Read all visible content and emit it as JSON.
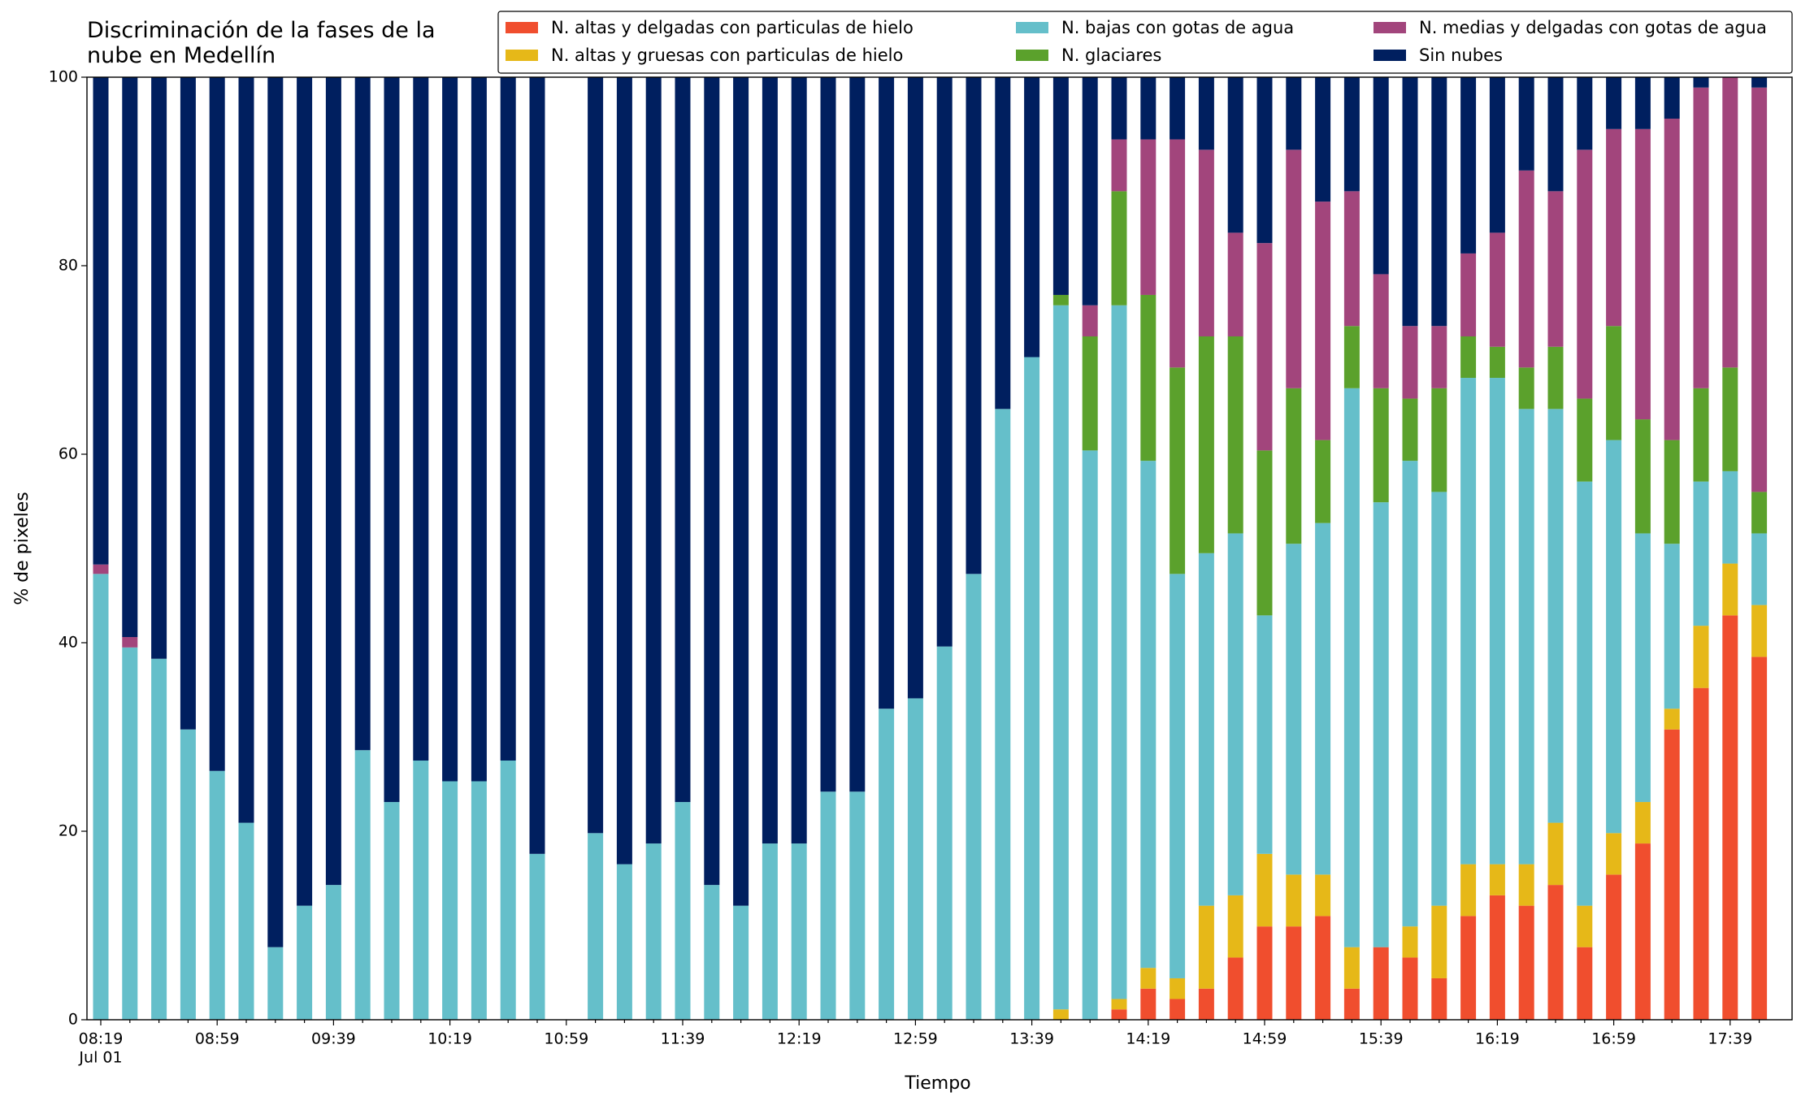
{
  "chart_data": {
    "type": "stacked_bar",
    "title": "Discriminación de la fases de la\nnube en Medellín",
    "xlabel": "Tiempo",
    "ylabel": "% de pixeles",
    "x_sublabel": "Jul 01",
    "categories": [
      "08:19",
      null,
      null,
      null,
      "08:59",
      null,
      null,
      null,
      "09:39",
      null,
      null,
      null,
      "10:19",
      null,
      null,
      null,
      "10:59",
      null,
      null,
      null,
      "11:39",
      null,
      null,
      null,
      "12:19",
      null,
      null,
      null,
      "12:59",
      null,
      null,
      null,
      "13:39",
      null,
      null,
      null,
      "14:19",
      null,
      null,
      null,
      "14:59",
      null,
      null,
      null,
      "15:39",
      null,
      null,
      null,
      "16:19",
      null,
      null,
      null,
      "16:59",
      null,
      null,
      null,
      "17:39",
      null
    ],
    "ylim": [
      0,
      100
    ],
    "yticks": [
      0,
      20,
      40,
      60,
      80,
      100
    ],
    "legend": "top-right",
    "series": [
      {
        "name": "N. altas y delgadas con particulas de hielo",
        "color": "#f04e2e",
        "values": [
          0,
          0,
          0,
          0,
          0,
          0,
          0,
          0,
          0,
          0,
          0,
          0,
          0,
          0,
          0,
          0,
          null,
          0,
          0,
          0,
          0,
          0,
          0,
          0,
          0,
          0,
          0,
          0,
          0,
          0,
          0,
          0,
          0,
          0,
          0,
          1.1,
          3.3,
          2.2,
          3.3,
          6.6,
          9.9,
          9.9,
          11.0,
          3.3,
          7.7,
          6.6,
          4.4,
          11.0,
          13.2,
          12.1,
          14.3,
          7.7,
          15.4,
          18.7,
          30.8,
          35.2,
          42.9,
          38.5
        ]
      },
      {
        "name": "N. altas y gruesas con particulas de hielo",
        "color": "#e6b818",
        "values": [
          0,
          0,
          0,
          0,
          0,
          0,
          0,
          0,
          0,
          0,
          0,
          0,
          0,
          0,
          0,
          0,
          null,
          0,
          0,
          0,
          0,
          0,
          0,
          0,
          0,
          0,
          0,
          0,
          0,
          0,
          0,
          0,
          0,
          1.1,
          0,
          1.1,
          2.2,
          2.2,
          8.8,
          6.6,
          7.7,
          5.5,
          4.4,
          4.4,
          0,
          3.3,
          7.7,
          5.5,
          3.3,
          4.4,
          6.6,
          4.4,
          4.4,
          4.4,
          2.2,
          6.6,
          5.5,
          5.5
        ]
      },
      {
        "name": "N. bajas con gotas de agua",
        "color": "#65bfca",
        "values": [
          47.3,
          39.5,
          38.3,
          30.8,
          26.4,
          20.9,
          7.7,
          12.1,
          14.3,
          28.6,
          23.1,
          27.5,
          25.3,
          25.3,
          27.5,
          17.6,
          null,
          19.8,
          16.5,
          18.7,
          23.1,
          14.3,
          12.1,
          18.7,
          18.7,
          24.2,
          24.2,
          33.0,
          34.1,
          39.6,
          47.3,
          64.8,
          70.3,
          74.7,
          60.4,
          73.6,
          53.8,
          42.9,
          37.4,
          38.4,
          25.3,
          35.1,
          37.3,
          59.3,
          47.2,
          49.4,
          43.9,
          51.6,
          51.6,
          48.3,
          43.9,
          45.0,
          41.7,
          28.5,
          17.5,
          15.3,
          9.8,
          7.6
        ]
      },
      {
        "name": "N. glaciares",
        "color": "#5ba12c",
        "values": [
          0,
          0,
          0,
          0,
          0,
          0,
          0,
          0,
          0,
          0,
          0,
          0,
          0,
          0,
          0,
          0,
          null,
          0,
          0,
          0,
          0,
          0,
          0,
          0,
          0,
          0,
          0,
          0,
          0,
          0,
          0,
          0,
          0,
          1.1,
          12.1,
          12.1,
          17.6,
          21.9,
          23.0,
          20.9,
          17.5,
          16.5,
          8.8,
          6.6,
          12.1,
          6.6,
          11.0,
          4.4,
          3.3,
          4.4,
          6.6,
          8.8,
          12.1,
          12.1,
          11.0,
          9.9,
          11.0,
          4.4
        ]
      },
      {
        "name": "N. medias y delgadas con gotas de agua",
        "color": "#a2457c",
        "values": [
          1.0,
          1.1,
          0,
          0,
          0,
          0,
          0,
          0,
          0,
          0,
          0,
          0,
          0,
          0,
          0,
          0,
          null,
          0,
          0,
          0,
          0,
          0,
          0,
          0,
          0,
          0,
          0,
          0,
          0,
          0,
          0,
          0,
          0,
          0,
          3.3,
          5.5,
          16.5,
          24.2,
          19.8,
          11.0,
          22.0,
          25.3,
          25.3,
          14.3,
          12.1,
          7.7,
          6.6,
          8.8,
          12.1,
          20.9,
          16.5,
          26.4,
          20.9,
          30.8,
          34.1,
          31.9,
          30.8,
          42.9
        ]
      },
      {
        "name": "Sin nubes",
        "color": "#001f5f",
        "values": [
          51.7,
          59.4,
          61.7,
          69.2,
          73.6,
          79.1,
          92.3,
          87.9,
          85.7,
          71.4,
          76.9,
          72.5,
          74.7,
          74.7,
          72.5,
          82.4,
          null,
          80.2,
          83.5,
          81.3,
          76.9,
          85.7,
          87.9,
          81.3,
          81.3,
          75.8,
          75.8,
          67.0,
          65.9,
          60.4,
          52.7,
          35.2,
          29.7,
          23.1,
          24.2,
          6.6,
          6.6,
          6.6,
          7.7,
          16.5,
          17.6,
          7.7,
          13.2,
          12.1,
          20.9,
          26.4,
          26.4,
          18.7,
          16.5,
          9.9,
          12.1,
          7.7,
          5.5,
          5.5,
          4.4,
          1.1,
          0,
          1.1
        ]
      }
    ]
  }
}
